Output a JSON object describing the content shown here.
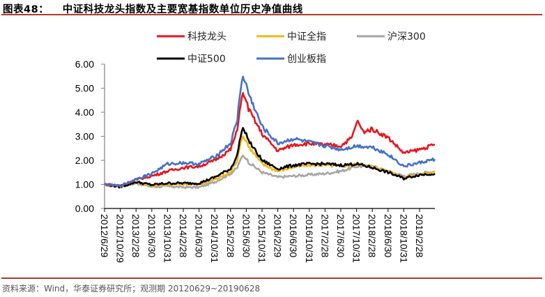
{
  "header": {
    "figure_label": "图表48：",
    "title": "中证科技龙头指数及主要宽基指数单位历史净值曲线"
  },
  "footer": {
    "source": "资料来源：Wind，华泰证券研究所；观测期 20120629~20190628"
  },
  "colors": {
    "rule": "#b23a2a",
    "科技龙头": "#e8141c",
    "中证全指": "#f2b716",
    "沪深300": "#a6a6a6",
    "中证500": "#000000",
    "创业板指": "#4472c4"
  },
  "chart_data": {
    "type": "line",
    "title": "中证科技龙头指数及主要宽基指数单位历史净值曲线",
    "xlabel": "",
    "ylabel": "",
    "ylim": [
      0,
      6
    ],
    "yticks": [
      "0.00",
      "1.00",
      "2.00",
      "3.00",
      "4.00",
      "5.00",
      "6.00"
    ],
    "grid": false,
    "legend_position": "top",
    "x": [
      "2012/6/29",
      "2012/10/29",
      "2013/2/28",
      "2013/6/30",
      "2013/10/31",
      "2014/2/28",
      "2014/6/30",
      "2014/10/31",
      "2015/2/28",
      "2015/6/30",
      "2015/10/31",
      "2016/2/29",
      "2016/6/30",
      "2016/10/31",
      "2017/2/28",
      "2017/6/30",
      "2017/10/31",
      "2018/2/28",
      "2018/6/30",
      "2018/10/31",
      "2019/2/28",
      "2019/6/28"
    ],
    "x_tick_labels": [
      "2012/6/29",
      "2012/10/29",
      "2013/2/28",
      "2013/6/30",
      "2013/10/31",
      "2014/2/28",
      "2014/6/30",
      "2014/10/31",
      "2015/2/28",
      "2015/6/30",
      "2015/10/31",
      "2016/2/29",
      "2016/6/30",
      "2016/10/31",
      "2017/2/28",
      "2017/6/30",
      "2017/10/31",
      "2018/2/28",
      "2018/6/30",
      "2018/10/31",
      "2019/2/28"
    ],
    "series": [
      {
        "name": "科技龙头",
        "color": "#e8141c",
        "values": [
          1.0,
          0.95,
          1.2,
          1.35,
          1.55,
          1.7,
          1.75,
          2.0,
          2.45,
          4.3,
          3.1,
          2.4,
          2.65,
          2.7,
          2.65,
          2.6,
          3.1,
          3.3,
          2.95,
          2.3,
          2.45,
          2.65
        ]
      },
      {
        "name": "中证全指",
        "color": "#f2b716",
        "values": [
          1.0,
          0.92,
          1.08,
          0.95,
          1.0,
          1.0,
          1.0,
          1.2,
          1.5,
          2.7,
          1.85,
          1.55,
          1.72,
          1.8,
          1.8,
          1.75,
          1.85,
          1.75,
          1.55,
          1.3,
          1.4,
          1.5
        ]
      },
      {
        "name": "沪深300",
        "color": "#a6a6a6",
        "values": [
          1.0,
          0.92,
          1.05,
          0.9,
          0.92,
          0.88,
          0.88,
          1.1,
          1.45,
          2.0,
          1.5,
          1.3,
          1.35,
          1.4,
          1.45,
          1.55,
          1.75,
          1.75,
          1.55,
          1.35,
          1.45,
          1.55
        ]
      },
      {
        "name": "中证500",
        "color": "#000000",
        "values": [
          1.0,
          0.9,
          1.1,
          0.98,
          1.05,
          1.05,
          1.05,
          1.3,
          1.65,
          2.95,
          2.0,
          1.65,
          1.8,
          1.85,
          1.85,
          1.8,
          1.85,
          1.7,
          1.5,
          1.25,
          1.4,
          1.45
        ]
      },
      {
        "name": "创业板指",
        "color": "#4472c4",
        "values": [
          1.0,
          0.93,
          1.22,
          1.45,
          1.85,
          1.9,
          1.85,
          2.15,
          2.7,
          5.0,
          3.4,
          2.7,
          2.9,
          2.75,
          2.6,
          2.45,
          2.6,
          2.55,
          2.25,
          1.75,
          1.9,
          2.05
        ]
      }
    ],
    "peaks": [
      {
        "series": "创业板指",
        "x": "2015/6",
        "value": 5.48
      },
      {
        "series": "科技龙头",
        "x": "2015/6",
        "value": 4.8
      },
      {
        "series": "中证500",
        "x": "2015/6",
        "value": 3.35
      },
      {
        "series": "中证全指",
        "x": "2015/6",
        "value": 3.0
      },
      {
        "series": "沪深300",
        "x": "2015/6",
        "value": 2.2
      },
      {
        "series": "科技龙头",
        "x": "2018/1",
        "value": 3.65
      }
    ]
  },
  "legend": [
    {
      "label": "科技龙头",
      "color": "#e8141c"
    },
    {
      "label": "中证全指",
      "color": "#f2b716"
    },
    {
      "label": "沪深300",
      "color": "#a6a6a6"
    },
    {
      "label": "中证500",
      "color": "#000000"
    },
    {
      "label": "创业板指",
      "color": "#4472c4"
    }
  ]
}
